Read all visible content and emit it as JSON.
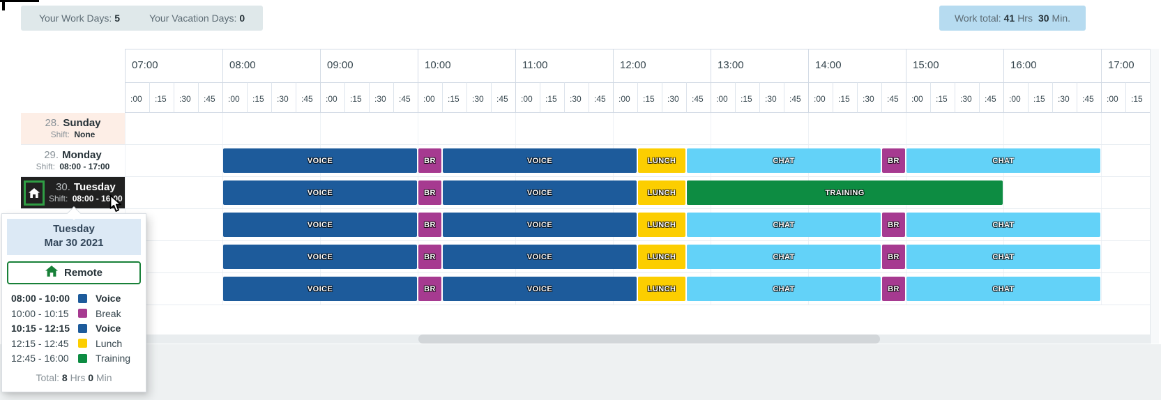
{
  "topbar": {
    "work_days_label": "Your Work Days:",
    "work_days": "5",
    "vacation_days_label": "Your Vacation Days:",
    "vacation_days": "0",
    "work_total_label": "Work total:",
    "work_total_hrs": "41",
    "hrs_unit": "Hrs",
    "work_total_min": "30",
    "min_unit": "Min."
  },
  "timeline": {
    "hours": [
      {
        "label": "07:00",
        "quarters": [
          ":00",
          ":15",
          ":30",
          ":45"
        ]
      },
      {
        "label": "08:00",
        "quarters": [
          ":00",
          ":15",
          ":30",
          ":45"
        ]
      },
      {
        "label": "09:00",
        "quarters": [
          ":00",
          ":15",
          ":30",
          ":45"
        ]
      },
      {
        "label": "10:00",
        "quarters": [
          ":00",
          ":15",
          ":30",
          ":45"
        ]
      },
      {
        "label": "11:00",
        "quarters": [
          ":00",
          ":15",
          ":30",
          ":45"
        ]
      },
      {
        "label": "12:00",
        "quarters": [
          ":00",
          ":15",
          ":30",
          ":45"
        ]
      },
      {
        "label": "13:00",
        "quarters": [
          ":00",
          ":15",
          ":30",
          ":45"
        ]
      },
      {
        "label": "14:00",
        "quarters": [
          ":00",
          ":15",
          ":30",
          ":45"
        ]
      },
      {
        "label": "15:00",
        "quarters": [
          ":00",
          ":15",
          ":30",
          ":45"
        ]
      },
      {
        "label": "16:00",
        "quarters": [
          ":00",
          ":15",
          ":30",
          ":45"
        ]
      },
      {
        "label": "17:00",
        "quarters": [
          ":00",
          ":15"
        ]
      }
    ]
  },
  "segment_types": {
    "voice": {
      "label": "VOICE",
      "color": "#1d5b9b"
    },
    "break": {
      "label": "BR",
      "color": "#a63a90"
    },
    "lunch": {
      "label": "LUNCH",
      "color": "#fcce00"
    },
    "chat": {
      "label": "CHAT",
      "color": "#63d2f8"
    },
    "training": {
      "label": "TRAINING",
      "color": "#0d8c42"
    }
  },
  "rows": [
    {
      "num": "28.",
      "day": "Sunday",
      "shift_label": "Shift:",
      "shift": "None",
      "type": "sunday",
      "segments": []
    },
    {
      "num": "29.",
      "day": "Monday",
      "shift_label": "Shift:",
      "shift": "08:00 - 17:00",
      "type": "normal",
      "segments": [
        {
          "start": "08:00",
          "end": "10:00",
          "type": "voice"
        },
        {
          "start": "10:00",
          "end": "10:15",
          "type": "break"
        },
        {
          "start": "10:15",
          "end": "12:15",
          "type": "voice"
        },
        {
          "start": "12:15",
          "end": "12:45",
          "type": "lunch"
        },
        {
          "start": "12:45",
          "end": "14:45",
          "type": "chat"
        },
        {
          "start": "14:45",
          "end": "15:00",
          "type": "break"
        },
        {
          "start": "15:00",
          "end": "17:00",
          "type": "chat"
        }
      ]
    },
    {
      "num": "30.",
      "day": "Tuesday",
      "shift_label": "Shift:",
      "shift": "08:00 - 16:00",
      "type": "selected",
      "segments": [
        {
          "start": "08:00",
          "end": "10:00",
          "type": "voice"
        },
        {
          "start": "10:00",
          "end": "10:15",
          "type": "break"
        },
        {
          "start": "10:15",
          "end": "12:15",
          "type": "voice"
        },
        {
          "start": "12:15",
          "end": "12:45",
          "type": "lunch"
        },
        {
          "start": "12:45",
          "end": "16:00",
          "type": "training"
        }
      ]
    },
    {
      "num": "",
      "day": "",
      "shift_label": "",
      "shift": "",
      "type": "covered",
      "segments": [
        {
          "start": "08:00",
          "end": "10:00",
          "type": "voice"
        },
        {
          "start": "10:00",
          "end": "10:15",
          "type": "break"
        },
        {
          "start": "10:15",
          "end": "12:15",
          "type": "voice"
        },
        {
          "start": "12:15",
          "end": "12:45",
          "type": "lunch"
        },
        {
          "start": "12:45",
          "end": "14:45",
          "type": "chat"
        },
        {
          "start": "14:45",
          "end": "15:00",
          "type": "break"
        },
        {
          "start": "15:00",
          "end": "17:00",
          "type": "chat"
        }
      ]
    },
    {
      "num": "",
      "day": "",
      "shift_label": "",
      "shift": "",
      "type": "covered",
      "segments": [
        {
          "start": "08:00",
          "end": "10:00",
          "type": "voice"
        },
        {
          "start": "10:00",
          "end": "10:15",
          "type": "break"
        },
        {
          "start": "10:15",
          "end": "12:15",
          "type": "voice"
        },
        {
          "start": "12:15",
          "end": "12:45",
          "type": "lunch"
        },
        {
          "start": "12:45",
          "end": "14:45",
          "type": "chat"
        },
        {
          "start": "14:45",
          "end": "15:00",
          "type": "break"
        },
        {
          "start": "15:00",
          "end": "17:00",
          "type": "chat"
        }
      ]
    },
    {
      "num": "",
      "day": "",
      "shift_label": "",
      "shift": "",
      "type": "covered",
      "segments": [
        {
          "start": "08:00",
          "end": "10:00",
          "type": "voice"
        },
        {
          "start": "10:00",
          "end": "10:15",
          "type": "break"
        },
        {
          "start": "10:15",
          "end": "12:15",
          "type": "voice"
        },
        {
          "start": "12:15",
          "end": "12:45",
          "type": "lunch"
        },
        {
          "start": "12:45",
          "end": "14:45",
          "type": "chat"
        },
        {
          "start": "14:45",
          "end": "15:00",
          "type": "break"
        },
        {
          "start": "15:00",
          "end": "17:00",
          "type": "chat"
        }
      ]
    }
  ],
  "tooltip": {
    "title": "Tuesday",
    "date": "Mar 30 2021",
    "remote_label": "Remote",
    "entries": [
      {
        "time": "08:00 - 10:00",
        "name": "Voice",
        "type": "voice",
        "bold": true
      },
      {
        "time": "10:00 - 10:15",
        "name": "Break",
        "type": "break",
        "bold": false
      },
      {
        "time": "10:15 - 12:15",
        "name": "Voice",
        "type": "voice",
        "bold": true
      },
      {
        "time": "12:15 - 12:45",
        "name": "Lunch",
        "type": "lunch",
        "bold": false
      },
      {
        "time": "12:45 - 16:00",
        "name": "Training",
        "type": "training",
        "bold": false
      }
    ],
    "total_label": "Total:",
    "total_hrs": "8",
    "total_hrs_unit": "Hrs",
    "total_min": "0",
    "total_min_unit": "Min"
  },
  "colors": {
    "badge_left_bg": "#dfe8ea",
    "badge_right_bg": "#b6dbf0",
    "sunday_bg": "#fdeee6",
    "selected_row_bg": "#212121",
    "remote_green": "#188038",
    "home_box_green": "#2f9e44",
    "tooltip_header_bg": "#dce9f5"
  }
}
